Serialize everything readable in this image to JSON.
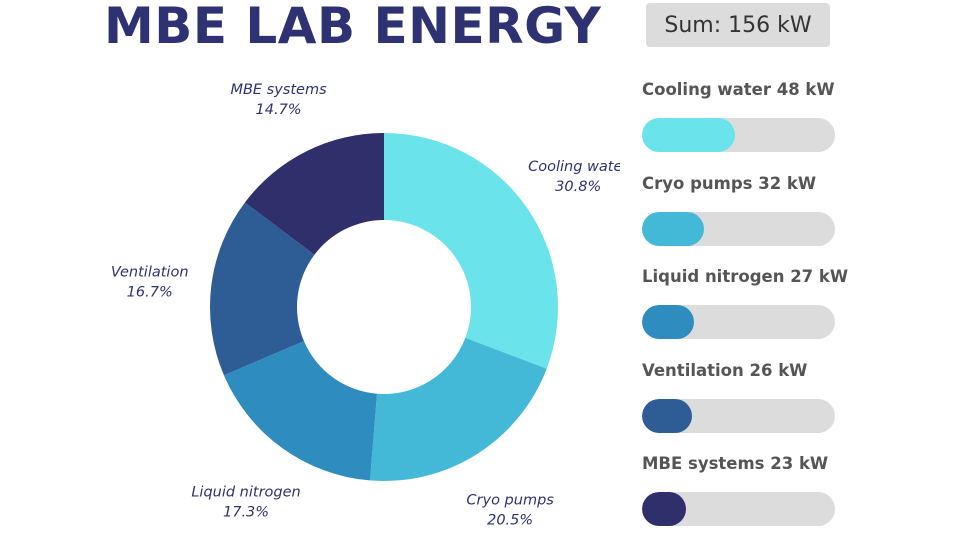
{
  "header": {
    "title": "MBE LAB ENERGY",
    "sum_label": "Sum: 156 kW"
  },
  "chart_data": [
    {
      "type": "pie",
      "donut": true,
      "title": "",
      "categories": [
        "Cooling water",
        "Cryo pumps",
        "Liquid nitrogen",
        "Ventilation",
        "MBE systems"
      ],
      "values": [
        48,
        32,
        27,
        26,
        23
      ],
      "percent_labels": [
        "30.8%",
        "20.5%",
        "17.3%",
        "16.7%",
        "14.7%"
      ],
      "colors": [
        "#6ae3ea",
        "#43b9d7",
        "#2f8cbf",
        "#2e5d96",
        "#2e2f6b"
      ]
    },
    {
      "type": "bar",
      "orientation": "horizontal",
      "title": "",
      "categories": [
        "Cooling water",
        "Cryo pumps",
        "Liquid nitrogen",
        "Ventilation",
        "MBE systems"
      ],
      "values": [
        48,
        32,
        27,
        26,
        23
      ],
      "labels": [
        "Cooling water 48 kW",
        "Cryo pumps 32 kW",
        "Liquid nitrogen 27 kW",
        "Ventilation 26 kW",
        "MBE systems 23 kW"
      ],
      "fill_fractions": [
        0.48,
        0.32,
        0.27,
        0.26,
        0.23
      ],
      "colors": [
        "#6ae3ea",
        "#43b9d7",
        "#2f8cbf",
        "#2e5d96",
        "#2e2f6b"
      ],
      "track_color": "#dcdcdc"
    }
  ]
}
